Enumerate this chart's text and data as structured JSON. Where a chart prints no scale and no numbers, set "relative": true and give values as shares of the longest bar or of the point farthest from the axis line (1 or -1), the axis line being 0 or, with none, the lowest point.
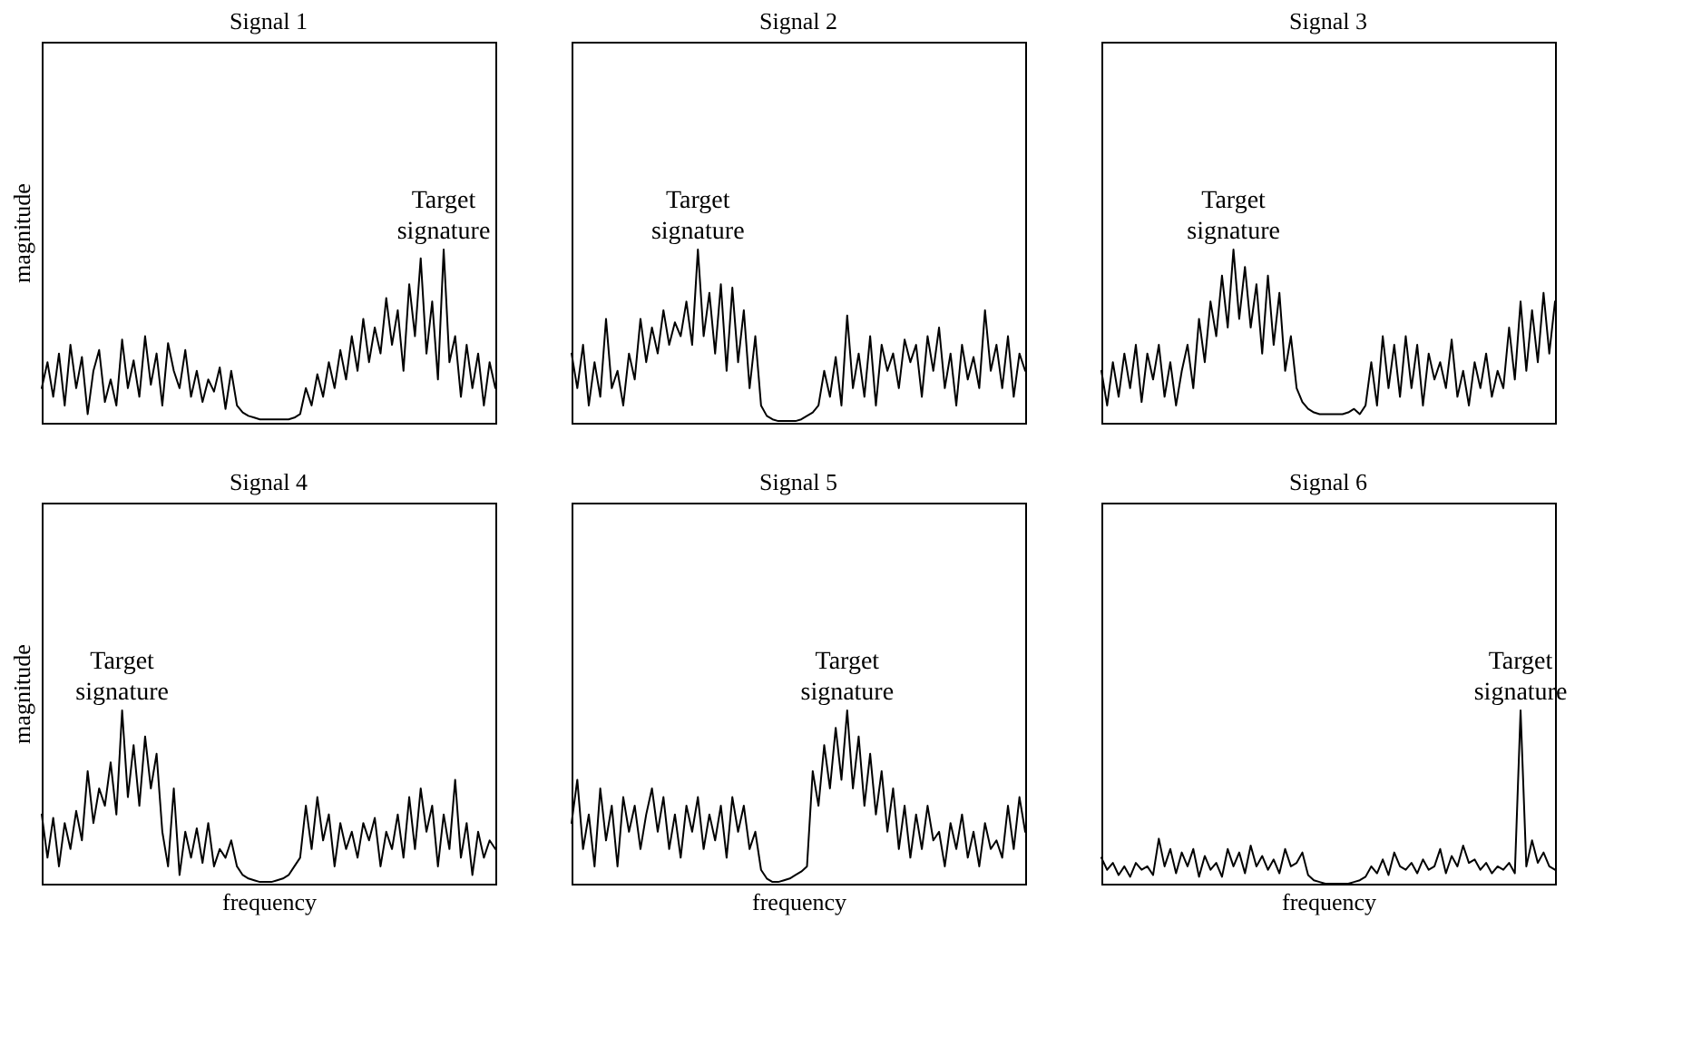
{
  "chart_data": [
    {
      "type": "line",
      "title": "Signal 1",
      "ylabel": "magnitude",
      "relative": true,
      "tick_labels": false,
      "grid": false,
      "annotations": [
        "Target signature"
      ],
      "categories": [
        null,
        null,
        null,
        null,
        null,
        null,
        null,
        null,
        null,
        null,
        null,
        null,
        null,
        null,
        null,
        null,
        null,
        null,
        null,
        null,
        null,
        null,
        null,
        null,
        null,
        null,
        null,
        null,
        null,
        null,
        null,
        null,
        null,
        null,
        null,
        null,
        null,
        null,
        null,
        null,
        null,
        null,
        null,
        null,
        null,
        null,
        null,
        null,
        null,
        null,
        null,
        null,
        null,
        null,
        null,
        null,
        null,
        null,
        null,
        null,
        null,
        null,
        null,
        null,
        null,
        null,
        null,
        null,
        null,
        null,
        null,
        null,
        null,
        null,
        null,
        null,
        null,
        null,
        null,
        null
      ],
      "series": [
        {
          "color": "#000000",
          "values": [
            0.2,
            0.35,
            0.15,
            0.4,
            0.1,
            0.45,
            0.2,
            0.38,
            0.05,
            0.3,
            0.42,
            0.12,
            0.25,
            0.1,
            0.48,
            0.2,
            0.36,
            0.15,
            0.5,
            0.22,
            0.4,
            0.1,
            0.46,
            0.3,
            0.2,
            0.42,
            0.15,
            0.3,
            0.12,
            0.25,
            0.18,
            0.32,
            0.08,
            0.3,
            0.1,
            0.06,
            0.04,
            0.03,
            0.02,
            0.02,
            0.02,
            0.02,
            0.02,
            0.02,
            0.03,
            0.05,
            0.2,
            0.1,
            0.28,
            0.15,
            0.35,
            0.2,
            0.42,
            0.25,
            0.5,
            0.3,
            0.6,
            0.35,
            0.55,
            0.4,
            0.72,
            0.45,
            0.65,
            0.3,
            0.8,
            0.5,
            0.95,
            0.4,
            0.7,
            0.25,
            1.0,
            0.35,
            0.5,
            0.15,
            0.45,
            0.2,
            0.4,
            0.1,
            0.35,
            0.2
          ]
        }
      ]
    },
    {
      "type": "line",
      "title": "Signal 2",
      "relative": true,
      "tick_labels": false,
      "grid": false,
      "annotations": [
        "Target signature"
      ],
      "categories": [
        null,
        null,
        null,
        null,
        null,
        null,
        null,
        null,
        null,
        null,
        null,
        null,
        null,
        null,
        null,
        null,
        null,
        null,
        null,
        null,
        null,
        null,
        null,
        null,
        null,
        null,
        null,
        null,
        null,
        null,
        null,
        null,
        null,
        null,
        null,
        null,
        null,
        null,
        null,
        null,
        null,
        null,
        null,
        null,
        null,
        null,
        null,
        null,
        null,
        null,
        null,
        null,
        null,
        null,
        null,
        null,
        null,
        null,
        null,
        null,
        null,
        null,
        null,
        null,
        null,
        null,
        null,
        null,
        null,
        null,
        null,
        null,
        null,
        null,
        null,
        null,
        null,
        null,
        null,
        null
      ],
      "series": [
        {
          "color": "#000000",
          "values": [
            0.4,
            0.2,
            0.45,
            0.1,
            0.35,
            0.15,
            0.6,
            0.2,
            0.3,
            0.1,
            0.4,
            0.25,
            0.6,
            0.35,
            0.55,
            0.4,
            0.65,
            0.45,
            0.58,
            0.5,
            0.7,
            0.45,
            1.0,
            0.5,
            0.75,
            0.4,
            0.8,
            0.3,
            0.78,
            0.35,
            0.65,
            0.2,
            0.5,
            0.1,
            0.04,
            0.02,
            0.01,
            0.01,
            0.01,
            0.01,
            0.02,
            0.04,
            0.06,
            0.1,
            0.3,
            0.15,
            0.38,
            0.1,
            0.62,
            0.2,
            0.4,
            0.15,
            0.5,
            0.1,
            0.45,
            0.3,
            0.4,
            0.2,
            0.48,
            0.35,
            0.45,
            0.15,
            0.5,
            0.3,
            0.55,
            0.2,
            0.4,
            0.1,
            0.45,
            0.25,
            0.38,
            0.2,
            0.65,
            0.3,
            0.45,
            0.2,
            0.5,
            0.15,
            0.4,
            0.3
          ]
        }
      ]
    },
    {
      "type": "line",
      "title": "Signal 3",
      "relative": true,
      "tick_labels": false,
      "grid": false,
      "annotations": [
        "Target signature"
      ],
      "categories": [
        null,
        null,
        null,
        null,
        null,
        null,
        null,
        null,
        null,
        null,
        null,
        null,
        null,
        null,
        null,
        null,
        null,
        null,
        null,
        null,
        null,
        null,
        null,
        null,
        null,
        null,
        null,
        null,
        null,
        null,
        null,
        null,
        null,
        null,
        null,
        null,
        null,
        null,
        null,
        null,
        null,
        null,
        null,
        null,
        null,
        null,
        null,
        null,
        null,
        null,
        null,
        null,
        null,
        null,
        null,
        null,
        null,
        null,
        null,
        null,
        null,
        null,
        null,
        null,
        null,
        null,
        null,
        null,
        null,
        null,
        null,
        null,
        null,
        null,
        null,
        null,
        null,
        null,
        null,
        null
      ],
      "series": [
        {
          "color": "#000000",
          "values": [
            0.3,
            0.1,
            0.35,
            0.15,
            0.4,
            0.2,
            0.45,
            0.12,
            0.4,
            0.25,
            0.45,
            0.15,
            0.35,
            0.1,
            0.3,
            0.45,
            0.2,
            0.6,
            0.35,
            0.7,
            0.5,
            0.85,
            0.55,
            1.0,
            0.6,
            0.9,
            0.55,
            0.8,
            0.4,
            0.85,
            0.45,
            0.75,
            0.3,
            0.5,
            0.2,
            0.12,
            0.08,
            0.06,
            0.05,
            0.05,
            0.05,
            0.05,
            0.05,
            0.06,
            0.08,
            0.05,
            0.1,
            0.35,
            0.1,
            0.5,
            0.2,
            0.45,
            0.15,
            0.5,
            0.2,
            0.45,
            0.1,
            0.4,
            0.25,
            0.35,
            0.2,
            0.48,
            0.15,
            0.3,
            0.1,
            0.35,
            0.2,
            0.4,
            0.15,
            0.3,
            0.2,
            0.55,
            0.25,
            0.7,
            0.3,
            0.65,
            0.35,
            0.75,
            0.4,
            0.7
          ]
        }
      ]
    },
    {
      "type": "line",
      "title": "Signal 4",
      "ylabel": "magnitude",
      "xlabel": "frequency",
      "relative": true,
      "tick_labels": false,
      "grid": false,
      "annotations": [
        "Target signature"
      ],
      "categories": [
        null,
        null,
        null,
        null,
        null,
        null,
        null,
        null,
        null,
        null,
        null,
        null,
        null,
        null,
        null,
        null,
        null,
        null,
        null,
        null,
        null,
        null,
        null,
        null,
        null,
        null,
        null,
        null,
        null,
        null,
        null,
        null,
        null,
        null,
        null,
        null,
        null,
        null,
        null,
        null,
        null,
        null,
        null,
        null,
        null,
        null,
        null,
        null,
        null,
        null,
        null,
        null,
        null,
        null,
        null,
        null,
        null,
        null,
        null,
        null,
        null,
        null,
        null,
        null,
        null,
        null,
        null,
        null,
        null,
        null,
        null,
        null,
        null,
        null,
        null,
        null,
        null,
        null,
        null,
        null
      ],
      "series": [
        {
          "color": "#000000",
          "values": [
            0.4,
            0.15,
            0.38,
            0.1,
            0.35,
            0.2,
            0.42,
            0.25,
            0.65,
            0.35,
            0.55,
            0.45,
            0.7,
            0.4,
            1.0,
            0.5,
            0.8,
            0.45,
            0.85,
            0.55,
            0.75,
            0.3,
            0.1,
            0.55,
            0.05,
            0.3,
            0.15,
            0.32,
            0.12,
            0.35,
            0.1,
            0.2,
            0.15,
            0.25,
            0.1,
            0.05,
            0.03,
            0.02,
            0.01,
            0.01,
            0.01,
            0.02,
            0.03,
            0.05,
            0.1,
            0.15,
            0.45,
            0.2,
            0.5,
            0.25,
            0.4,
            0.1,
            0.35,
            0.2,
            0.3,
            0.15,
            0.35,
            0.25,
            0.38,
            0.1,
            0.3,
            0.2,
            0.4,
            0.15,
            0.5,
            0.2,
            0.55,
            0.3,
            0.45,
            0.1,
            0.4,
            0.2,
            0.6,
            0.15,
            0.35,
            0.05,
            0.3,
            0.15,
            0.25,
            0.2
          ]
        }
      ]
    },
    {
      "type": "line",
      "title": "Signal 5",
      "xlabel": "frequency",
      "relative": true,
      "tick_labels": false,
      "grid": false,
      "annotations": [
        "Target signature"
      ],
      "categories": [
        null,
        null,
        null,
        null,
        null,
        null,
        null,
        null,
        null,
        null,
        null,
        null,
        null,
        null,
        null,
        null,
        null,
        null,
        null,
        null,
        null,
        null,
        null,
        null,
        null,
        null,
        null,
        null,
        null,
        null,
        null,
        null,
        null,
        null,
        null,
        null,
        null,
        null,
        null,
        null,
        null,
        null,
        null,
        null,
        null,
        null,
        null,
        null,
        null,
        null,
        null,
        null,
        null,
        null,
        null,
        null,
        null,
        null,
        null,
        null,
        null,
        null,
        null,
        null,
        null,
        null,
        null,
        null,
        null,
        null,
        null,
        null,
        null,
        null,
        null,
        null,
        null,
        null,
        null,
        null
      ],
      "series": [
        {
          "color": "#000000",
          "values": [
            0.35,
            0.6,
            0.2,
            0.4,
            0.1,
            0.55,
            0.25,
            0.45,
            0.1,
            0.5,
            0.3,
            0.45,
            0.2,
            0.4,
            0.55,
            0.3,
            0.5,
            0.2,
            0.4,
            0.15,
            0.45,
            0.3,
            0.5,
            0.2,
            0.4,
            0.25,
            0.45,
            0.15,
            0.5,
            0.3,
            0.45,
            0.2,
            0.3,
            0.08,
            0.03,
            0.01,
            0.01,
            0.02,
            0.03,
            0.05,
            0.07,
            0.1,
            0.65,
            0.45,
            0.8,
            0.55,
            0.9,
            0.6,
            1.0,
            0.55,
            0.85,
            0.45,
            0.75,
            0.4,
            0.65,
            0.3,
            0.55,
            0.2,
            0.45,
            0.15,
            0.4,
            0.2,
            0.45,
            0.25,
            0.3,
            0.1,
            0.35,
            0.2,
            0.4,
            0.15,
            0.3,
            0.1,
            0.35,
            0.2,
            0.25,
            0.15,
            0.45,
            0.2,
            0.5,
            0.3
          ]
        }
      ]
    },
    {
      "type": "line",
      "title": "Signal 6",
      "xlabel": "frequency",
      "relative": true,
      "tick_labels": false,
      "grid": false,
      "annotations": [
        "Target signature"
      ],
      "categories": [
        null,
        null,
        null,
        null,
        null,
        null,
        null,
        null,
        null,
        null,
        null,
        null,
        null,
        null,
        null,
        null,
        null,
        null,
        null,
        null,
        null,
        null,
        null,
        null,
        null,
        null,
        null,
        null,
        null,
        null,
        null,
        null,
        null,
        null,
        null,
        null,
        null,
        null,
        null,
        null,
        null,
        null,
        null,
        null,
        null,
        null,
        null,
        null,
        null,
        null,
        null,
        null,
        null,
        null,
        null,
        null,
        null,
        null,
        null,
        null,
        null,
        null,
        null,
        null,
        null,
        null,
        null,
        null,
        null,
        null,
        null,
        null,
        null,
        null,
        null,
        null,
        null,
        null,
        null,
        null
      ],
      "series": [
        {
          "color": "#000000",
          "values": [
            0.15,
            0.08,
            0.12,
            0.05,
            0.1,
            0.04,
            0.12,
            0.08,
            0.1,
            0.05,
            0.26,
            0.1,
            0.2,
            0.06,
            0.18,
            0.1,
            0.2,
            0.04,
            0.16,
            0.08,
            0.12,
            0.04,
            0.2,
            0.1,
            0.18,
            0.06,
            0.22,
            0.1,
            0.16,
            0.08,
            0.14,
            0.06,
            0.2,
            0.1,
            0.12,
            0.18,
            0.05,
            0.02,
            0.01,
            0.0,
            0.0,
            0.0,
            0.0,
            0.0,
            0.01,
            0.02,
            0.04,
            0.1,
            0.06,
            0.14,
            0.05,
            0.18,
            0.1,
            0.08,
            0.12,
            0.06,
            0.14,
            0.08,
            0.1,
            0.2,
            0.06,
            0.16,
            0.1,
            0.22,
            0.12,
            0.14,
            0.08,
            0.12,
            0.06,
            0.1,
            0.08,
            0.12,
            0.06,
            1.0,
            0.1,
            0.25,
            0.12,
            0.18,
            0.1,
            0.08
          ]
        }
      ]
    }
  ]
}
